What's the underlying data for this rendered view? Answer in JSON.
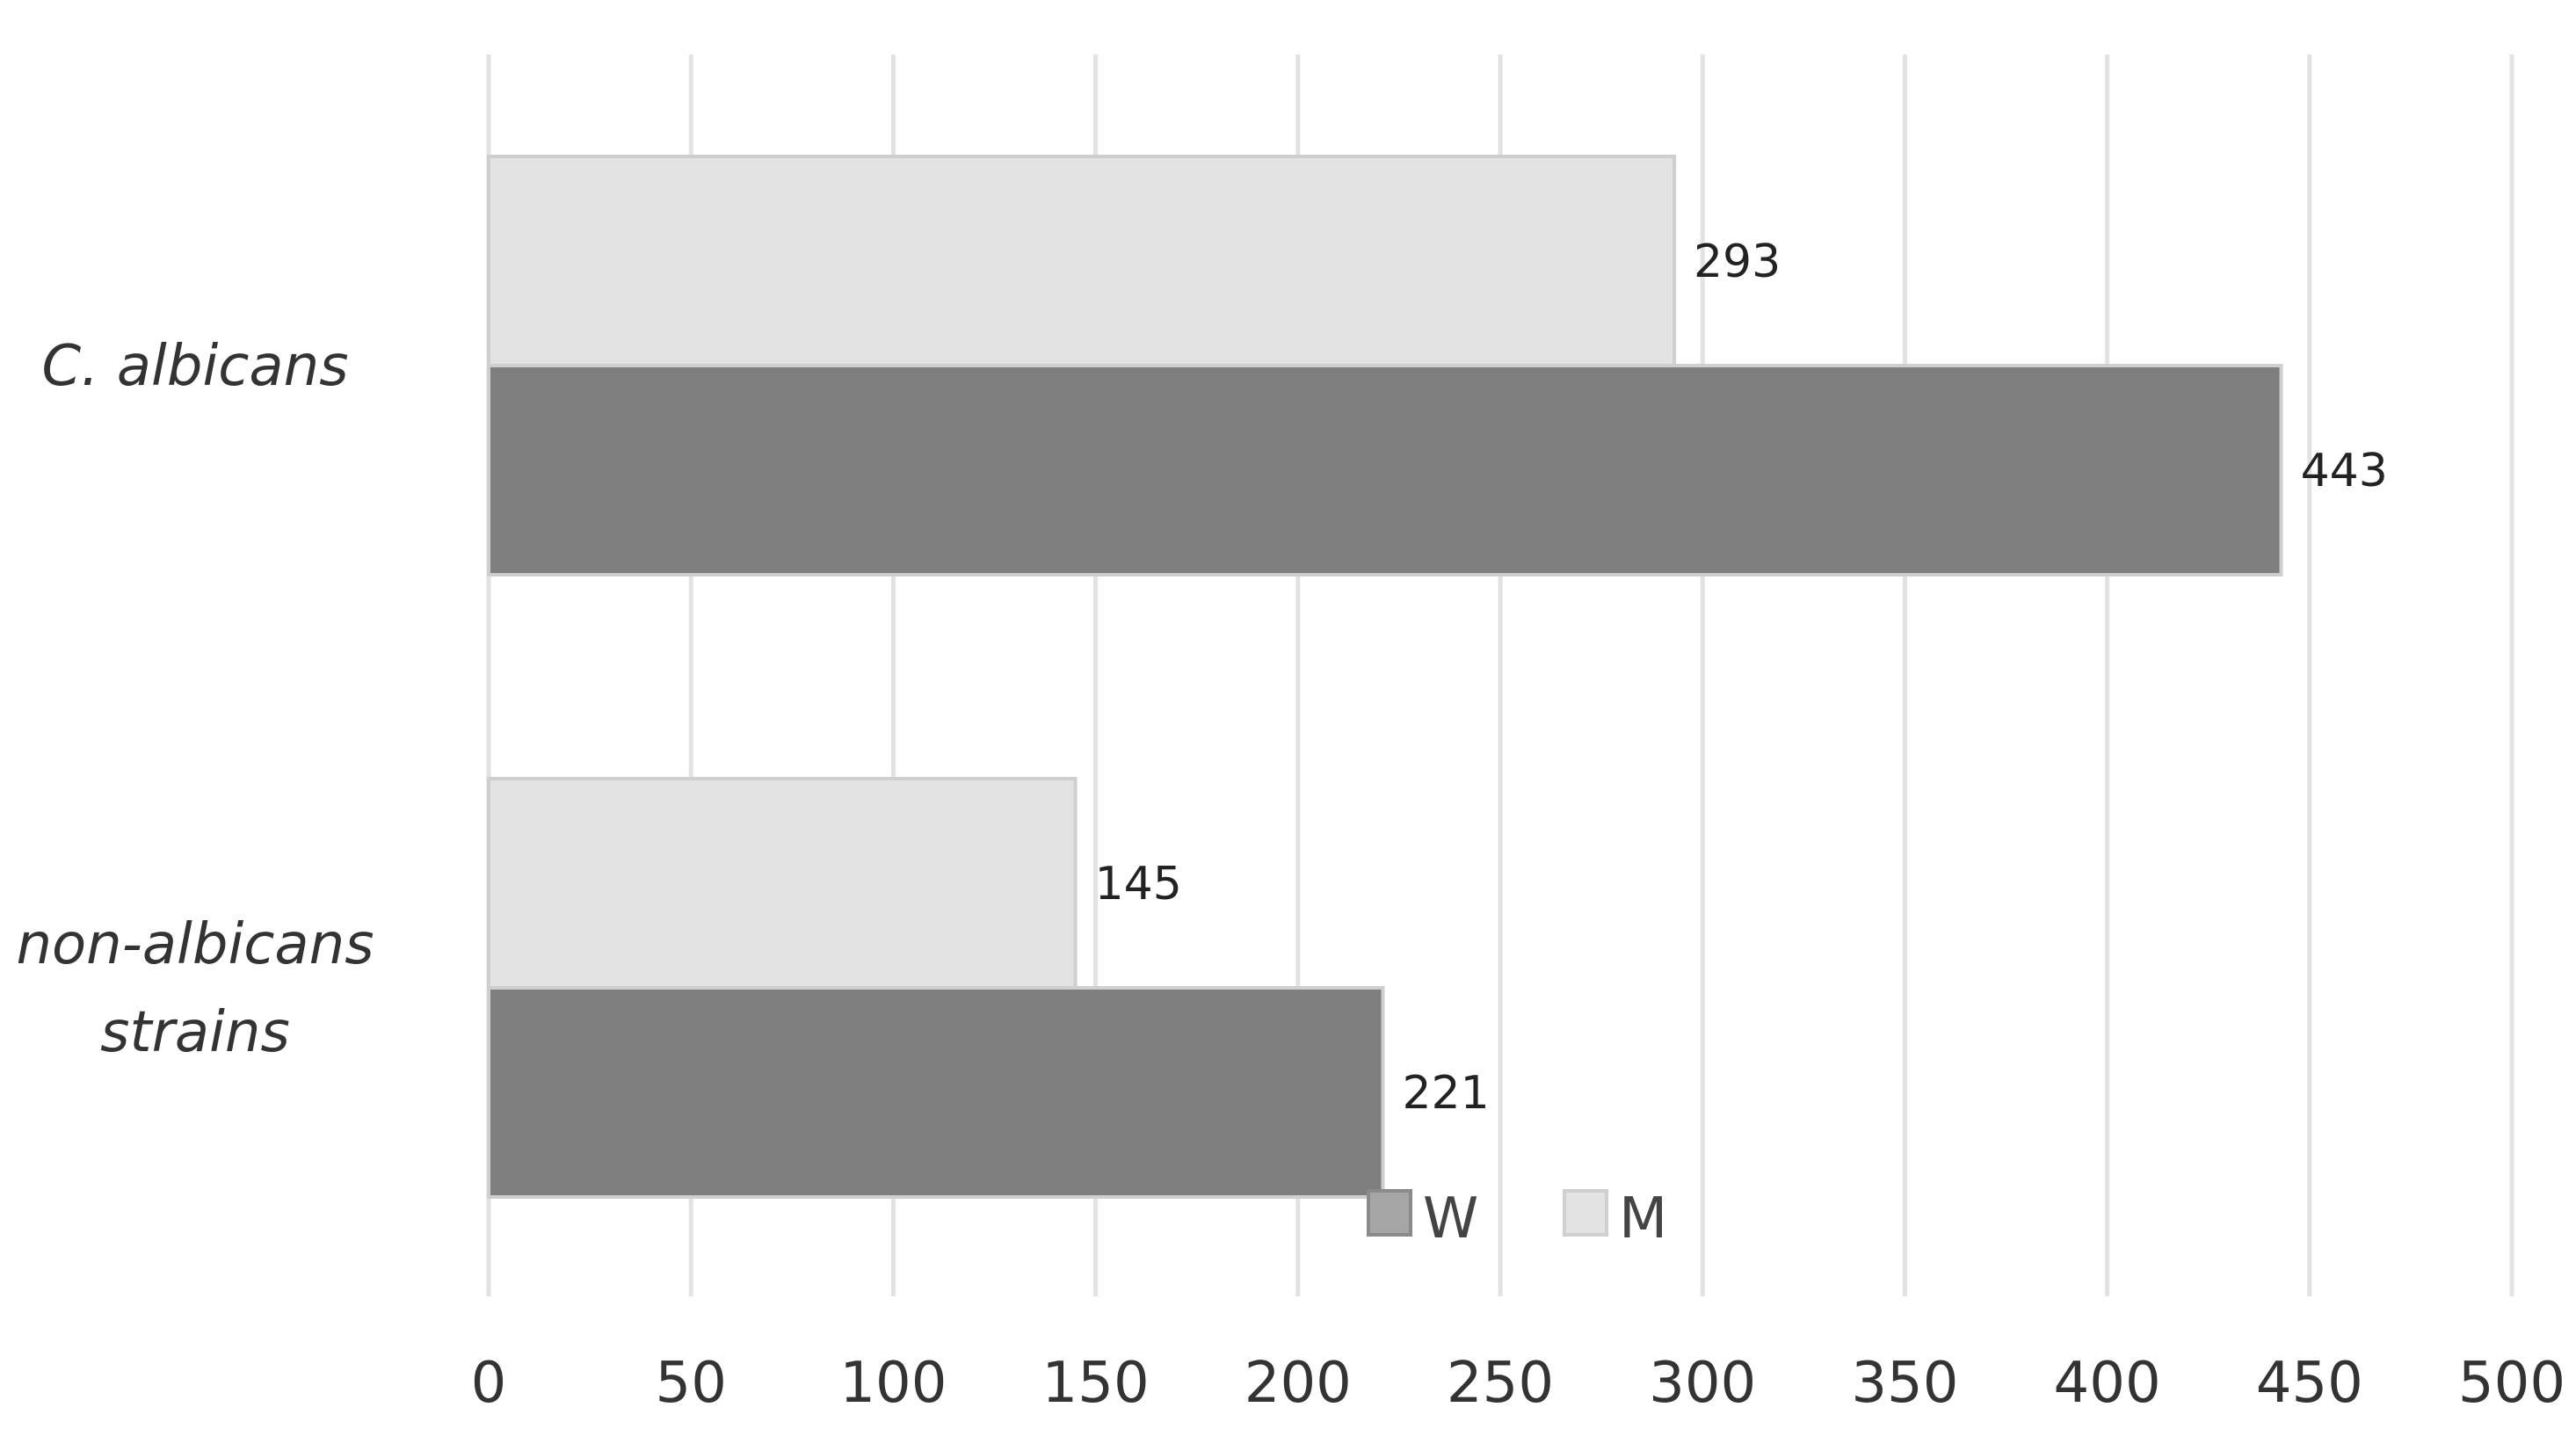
{
  "chart_data": {
    "type": "bar",
    "orientation": "horizontal",
    "title": "",
    "xlabel": "",
    "ylabel": "",
    "categories": [
      "C. albicans",
      "non-albicans strains"
    ],
    "category_lines": [
      [
        "C. albicans"
      ],
      [
        "non-albicans",
        "strains"
      ]
    ],
    "series": [
      {
        "name": "M",
        "values": [
          293,
          145
        ],
        "color": "#e3e3e3"
      },
      {
        "name": "W",
        "values": [
          443,
          221
        ],
        "color": "#7f7f7f"
      }
    ],
    "legend_order": [
      "W",
      "M"
    ],
    "xlim": [
      0,
      500
    ],
    "xticks": [
      "0",
      "50",
      "100",
      "150",
      "200",
      "250",
      "300",
      "350",
      "400",
      "450",
      "500"
    ],
    "grid": true,
    "legend_placement": "bottom-center",
    "data_labels": true
  }
}
